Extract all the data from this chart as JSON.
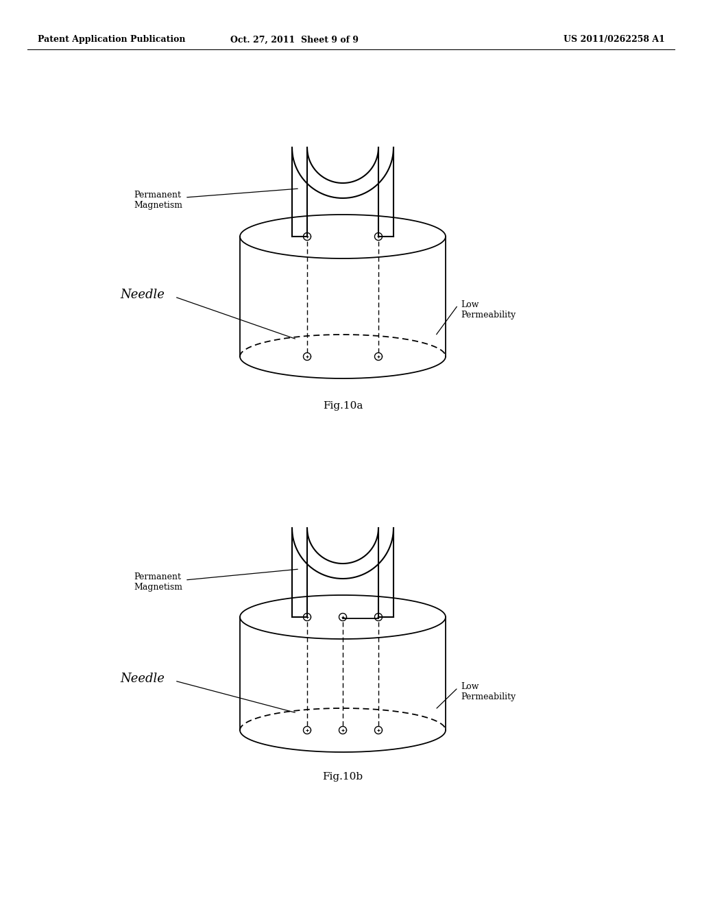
{
  "bg_color": "#ffffff",
  "line_color": "#000000",
  "header_left": "Patent Application Publication",
  "header_mid": "Oct. 27, 2011  Sheet 9 of 9",
  "header_right": "US 2011/0262258 A1",
  "fig_label_a": "Fig.10a",
  "fig_label_b": "Fig.10b",
  "label_perm_mag": "Permanent\nMagnetism",
  "label_needle": "Needle",
  "label_low_perm": "Low\nPermeability",
  "header_fontsize": 9,
  "label_fontsize": 9,
  "needle_fontsize": 13,
  "fig_label_fontsize": 11
}
